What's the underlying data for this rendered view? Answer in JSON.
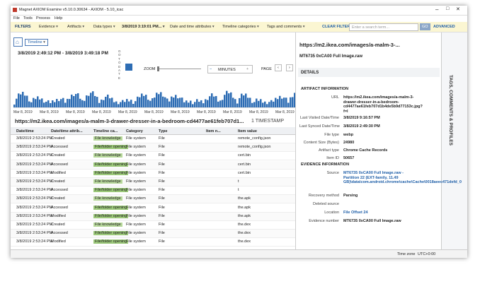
{
  "window": {
    "title": "Magnet AXIOM Examine v5.10.0.30634 - AXIOM - 5.10_icac"
  },
  "menu": [
    "File",
    "Tools",
    "Process",
    "Help"
  ],
  "filters": {
    "label": "FILTERS",
    "items": [
      "Evidence",
      "Artifacts",
      "Data types",
      "3/8/2019 3:19:01 PM...",
      "Date and time attributes",
      "Timeline categories",
      "Tags and comments"
    ],
    "clear": "CLEAR FILTERS",
    "search_placeholder": "Enter a search term...",
    "go": "GO",
    "advanced": "ADVANCED"
  },
  "timeline": {
    "view": "Timeline",
    "range": "3/8/2019 2:49:12 PM  -  3/8/2019 3:49:18 PM",
    "goto": "GO TO DATE",
    "zoom": "ZOOM",
    "unit": "MINUTES",
    "page": "PAGE",
    "axis_labels": [
      "Mar 8, 2019",
      "Mar 8, 2019",
      "Mar 8, 2019",
      "Mar 8, 2019",
      "Mar 8, 2019",
      "Mar 8, 2019",
      "Mar 8, 2019",
      "Mar 8, 2019",
      "Mar 8, 2019",
      "Mar 8, 2019",
      "Mar 8, 2019"
    ]
  },
  "heading": {
    "title": "https://m2.ikea.com/images/a-malm-3-drawer-dresser-in-a-bedroom-cd4477ae61feb707d1...",
    "count": "1 TIMESTAMP"
  },
  "table": {
    "columns": [
      "Date/time",
      "Date/time attrib...",
      "Timeline ca...",
      "Category",
      "Type",
      "Item n...",
      "Item value"
    ],
    "rows": [
      [
        "3/8/2019 2:53:24 PM",
        "Created",
        "File knowledge",
        "File system",
        "File",
        "remote_config.json"
      ],
      [
        "3/8/2019 2:53:24 PM",
        "Accessed",
        "File/folder opening",
        "File system",
        "File",
        "remote_config.json"
      ],
      [
        "3/8/2019 2:53:24 PM",
        "Created",
        "File knowledge",
        "File system",
        "File",
        "cert.bin"
      ],
      [
        "3/8/2019 2:53:24 PM",
        "Accessed",
        "File/folder opening",
        "File system",
        "File",
        "cert.bin"
      ],
      [
        "3/8/2019 2:53:24 PM",
        "Modified",
        "File/folder opening",
        "File system",
        "File",
        "cert.bin"
      ],
      [
        "3/8/2019 2:53:24 PM",
        "Created",
        "File knowledge",
        "File system",
        "File",
        "t"
      ],
      [
        "3/8/2019 2:53:24 PM",
        "Accessed",
        "File/folder opening",
        "File system",
        "File",
        "t"
      ],
      [
        "3/8/2019 2:53:24 PM",
        "Created",
        "File knowledge",
        "File system",
        "File",
        "the.apk"
      ],
      [
        "3/8/2019 2:53:24 PM",
        "Accessed",
        "File/folder opening",
        "File system",
        "File",
        "the.apk"
      ],
      [
        "3/8/2019 2:53:24 PM",
        "Modified",
        "File/folder opening",
        "File system",
        "File",
        "the.apk"
      ],
      [
        "3/8/2019 2:53:24 PM",
        "Created",
        "File knowledge",
        "File system",
        "File",
        "the.dex"
      ],
      [
        "3/8/2019 2:53:24 PM",
        "Accessed",
        "File/folder opening",
        "File system",
        "File",
        "the.dex"
      ],
      [
        "3/8/2019 2:53:24 PM",
        "Modified",
        "File/folder opening",
        "File system",
        "File",
        "the.dex"
      ]
    ]
  },
  "details": {
    "title": "https://m2.ikea.com/images/a-malm-3-...",
    "subtitle": "MT6735 0xCA00 Full Image.raw",
    "heading": "DETAILS",
    "artifact_heading": "ARTIFACT INFORMATION",
    "artifact": [
      {
        "label": "URL",
        "value": "https://m2.ikea.com/images/a-malm-3-drawer-dresser-in-a-bedroom-cd4477ae61feb707d1b4de5b9d77153c.jpg?f=l"
      },
      {
        "label": "Last Visited Date/Time",
        "value": "3/8/2019 9:16:57 PM"
      },
      {
        "label": "Last Synced Date/Time",
        "value": "3/8/2019 2:49:30 PM"
      },
      {
        "label": "File type",
        "value": "webp"
      },
      {
        "label": "Content Size (Bytes)",
        "value": "24980"
      },
      {
        "label": "Artifact type",
        "value": "Chrome Cache Records"
      },
      {
        "label": "Item ID",
        "value": "50657"
      }
    ],
    "evidence_heading": "EVIDENCE INFORMATION",
    "evidence": [
      {
        "label": "Source",
        "value": "MT6735 0xCA00 Full Image.raw - Partition 22 (EXT-family, 11.49 GB)\\data\\com.android.chrome\\cache\\Cache\\0018aeec471defd_0"
      },
      {
        "label": "Recovery method",
        "value": "Parsing"
      },
      {
        "label": "Deleted source"
      },
      {
        "label": "Location",
        "value": "File Offset 24"
      },
      {
        "label": "Evidence number",
        "value": "MT6735 0xCA00 Full Image.raw"
      }
    ]
  },
  "side_tab": "TAGS, COMMENTS & PROFILES",
  "status": {
    "label": "Time zone",
    "value": "UTC+0:00"
  }
}
